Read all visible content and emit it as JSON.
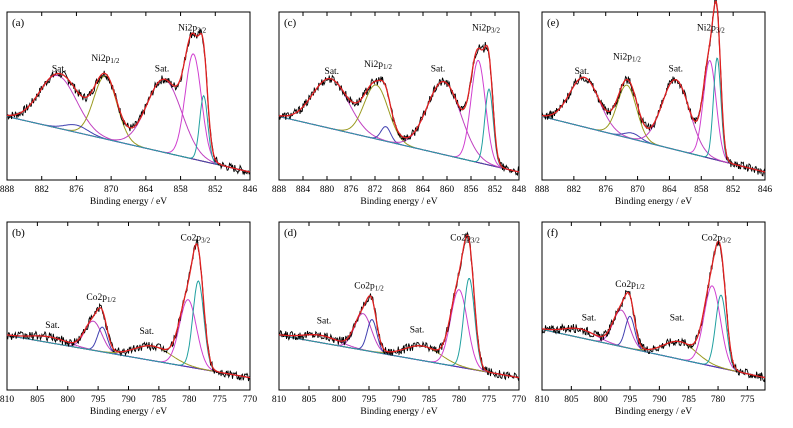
{
  "chart_data": [
    {
      "panel": "(a)",
      "type": "line",
      "xlabel": "Binding energy / eV",
      "xlim": [
        888,
        846
      ],
      "xticks": [
        888,
        882,
        876,
        870,
        864,
        858,
        852,
        846
      ],
      "ymin": 0,
      "ymax": 100,
      "annotations": [
        {
          "text": "Sat.",
          "x": 879.0,
          "y": 69
        },
        {
          "text": "Ni2p",
          "sub": "1/2",
          "x": 871.0,
          "y": 76
        },
        {
          "text": "Sat.",
          "x": 861.2,
          "y": 69
        },
        {
          "text": "Ni2p",
          "sub": "3/2",
          "x": 856.0,
          "y": 97
        }
      ],
      "background": [
        {
          "x": 888,
          "y": 38
        },
        {
          "x": 846,
          "y": 0
        }
      ],
      "series": [
        {
          "name": "Sat.",
          "color": "#c040c0",
          "peaks": [
            {
              "c": 879.2,
              "h": 36,
              "w": 3.2
            }
          ]
        },
        {
          "name": "Ni2p1/2",
          "color": "#9a9a20",
          "peaks": [
            {
              "c": 871.0,
              "h": 43,
              "w": 2.0
            }
          ]
        },
        {
          "name": "Ni2p1/2 minor",
          "color": "#4040b0",
          "peaks": [
            {
              "c": 876.0,
              "h": 5,
              "w": 2.0
            }
          ]
        },
        {
          "name": "Sat.",
          "color": "#c040c0",
          "peaks": [
            {
              "c": 860.8,
              "h": 50,
              "w": 3.0
            }
          ]
        },
        {
          "name": "Ni2p3/2",
          "color": "#d040d0",
          "peaks": [
            {
              "c": 855.8,
              "h": 72,
              "w": 1.4
            }
          ]
        },
        {
          "name": "Ni2p3/2 minor",
          "color": "#20a0a0",
          "peaks": [
            {
              "c": 854.0,
              "h": 45,
              "w": 0.7
            }
          ]
        }
      ]
    },
    {
      "panel": "(c)",
      "type": "line",
      "xlabel": "Binding energy / eV",
      "xlim": [
        888,
        848
      ],
      "xticks": [
        888,
        884,
        880,
        876,
        872,
        868,
        864,
        860,
        856,
        852,
        848
      ],
      "ymin": 0,
      "ymax": 100,
      "annotations": [
        {
          "text": "Sat.",
          "x": 879.2,
          "y": 67
        },
        {
          "text": "Ni2p",
          "sub": "1/2",
          "x": 871.5,
          "y": 72
        },
        {
          "text": "Sat.",
          "x": 861.5,
          "y": 69
        },
        {
          "text": "Ni2p",
          "sub": "3/2",
          "x": 853.5,
          "y": 97
        }
      ],
      "background": [
        {
          "x": 888,
          "y": 38
        },
        {
          "x": 848,
          "y": 0
        }
      ],
      "series": [
        {
          "name": "Sat.",
          "color": "#c040c0",
          "peaks": [
            {
              "c": 879.4,
              "h": 34,
              "w": 3.0
            }
          ]
        },
        {
          "name": "Ni2p1/2",
          "color": "#9a9a20",
          "peaks": [
            {
              "c": 871.8,
              "h": 37,
              "w": 2.0
            }
          ]
        },
        {
          "name": "Ni2p1/2 minor",
          "color": "#4040b0",
          "peaks": [
            {
              "c": 870.2,
              "h": 10,
              "w": 0.8
            }
          ]
        },
        {
          "name": "Sat.",
          "color": "#c040c0",
          "peaks": [
            {
              "c": 860.5,
              "h": 50,
              "w": 2.8
            }
          ]
        },
        {
          "name": "Ni2p3/2",
          "color": "#d040d0",
          "peaks": [
            {
              "c": 854.8,
              "h": 70,
              "w": 1.2
            }
          ]
        },
        {
          "name": "Ni2p3/2 minor",
          "color": "#20a0a0",
          "peaks": [
            {
              "c": 853.0,
              "h": 52,
              "w": 0.7
            }
          ]
        }
      ]
    },
    {
      "panel": "(e)",
      "type": "line",
      "xlabel": "Binding energy / eV",
      "xlim": [
        888,
        846
      ],
      "xticks": [
        888,
        882,
        876,
        870,
        864,
        858,
        852,
        846
      ],
      "ymin": 0,
      "ymax": 100,
      "annotations": [
        {
          "text": "Sat.",
          "x": 880.5,
          "y": 67
        },
        {
          "text": "Ni2p",
          "sub": "1/2",
          "x": 872.0,
          "y": 77
        },
        {
          "text": "Sat.",
          "x": 862.8,
          "y": 69
        },
        {
          "text": "Ni2p",
          "sub": "3/2",
          "x": 856.2,
          "y": 97
        }
      ],
      "background": [
        {
          "x": 888,
          "y": 38
        },
        {
          "x": 846,
          "y": 0
        }
      ],
      "series": [
        {
          "name": "Sat.",
          "color": "#c040c0",
          "peaks": [
            {
              "c": 880.0,
              "h": 34,
              "w": 2.8
            }
          ]
        },
        {
          "name": "Ni2p1/2",
          "color": "#9a9a20",
          "peaks": [
            {
              "c": 872.0,
              "h": 36,
              "w": 1.8
            }
          ]
        },
        {
          "name": "Ni2p1/2 minor",
          "color": "#4040b0",
          "peaks": [
            {
              "c": 871.0,
              "h": 4,
              "w": 1.5
            }
          ]
        },
        {
          "name": "Sat.",
          "color": "#c040c0",
          "peaks": [
            {
              "c": 862.8,
              "h": 48,
              "w": 2.6
            }
          ]
        },
        {
          "name": "Ni2p3/2",
          "color": "#d040d0",
          "peaks": [
            {
              "c": 856.4,
              "h": 67,
              "w": 1.2
            }
          ]
        },
        {
          "name": "Ni2p3/2 minor",
          "color": "#20a0a0",
          "peaks": [
            {
              "c": 855.0,
              "h": 70,
              "w": 0.7
            }
          ]
        }
      ]
    },
    {
      "panel": "(b)",
      "type": "line",
      "xlabel": "Binding energy / eV",
      "xlim": [
        810,
        770
      ],
      "xticks": [
        810,
        805,
        800,
        795,
        790,
        785,
        780,
        775,
        770
      ],
      "ymin": 0,
      "ymax": 100,
      "annotations": [
        {
          "text": "Sat.",
          "x": 802.5,
          "y": 37
        },
        {
          "text": "Co2p",
          "sub": "1/2",
          "x": 794.5,
          "y": 56
        },
        {
          "text": "Sat.",
          "x": 787.0,
          "y": 33
        },
        {
          "text": "Co2p",
          "sub": "3/2",
          "x": 779.0,
          "y": 97
        }
      ],
      "background": [
        {
          "x": 810,
          "y": 32
        },
        {
          "x": 770,
          "y": 3
        }
      ],
      "series": [
        {
          "name": "Sat.",
          "color": "#c040c0",
          "peaks": [
            {
              "c": 803.0,
              "h": 4,
              "w": 3.0
            }
          ]
        },
        {
          "name": "Co2p1/2",
          "color": "#c040c0",
          "peaks": [
            {
              "c": 795.8,
              "h": 20,
              "w": 1.4
            }
          ]
        },
        {
          "name": "Co2p1/2 minor",
          "color": "#4040b0",
          "peaks": [
            {
              "c": 794.3,
              "h": 17,
              "w": 0.8
            }
          ]
        },
        {
          "name": "Sat.",
          "color": "#9a9a20",
          "peaks": [
            {
              "c": 786.0,
              "h": 10,
              "w": 3.0
            }
          ]
        },
        {
          "name": "Co2p3/2",
          "color": "#d040d0",
          "peaks": [
            {
              "c": 780.2,
              "h": 46,
              "w": 1.4
            }
          ]
        },
        {
          "name": "Co2p3/2 minor",
          "color": "#20a0a0",
          "peaks": [
            {
              "c": 778.5,
              "h": 60,
              "w": 0.9
            }
          ]
        }
      ]
    },
    {
      "panel": "(d)",
      "type": "line",
      "xlabel": "Binding energy / eV",
      "xlim": [
        810,
        770
      ],
      "xticks": [
        810,
        805,
        800,
        795,
        790,
        785,
        780,
        775,
        770
      ],
      "ymin": 0,
      "ymax": 100,
      "annotations": [
        {
          "text": "Sat.",
          "x": 802.5,
          "y": 40
        },
        {
          "text": "Co2p",
          "sub": "1/2",
          "x": 795.0,
          "y": 64
        },
        {
          "text": "Sat.",
          "x": 787.0,
          "y": 34
        },
        {
          "text": "Co2p",
          "sub": "3/2",
          "x": 779.0,
          "y": 97
        }
      ],
      "background": [
        {
          "x": 810,
          "y": 32
        },
        {
          "x": 770,
          "y": 3
        }
      ],
      "series": [
        {
          "name": "Sat.",
          "color": "#c040c0",
          "peaks": [
            {
              "c": 803.0,
              "h": 5,
              "w": 3.0
            }
          ]
        },
        {
          "name": "Co2p1/2",
          "color": "#c040c0",
          "peaks": [
            {
              "c": 796.0,
              "h": 25,
              "w": 1.4
            }
          ]
        },
        {
          "name": "Co2p1/2 minor",
          "color": "#4040b0",
          "peaks": [
            {
              "c": 794.5,
              "h": 22,
              "w": 0.8
            }
          ]
        },
        {
          "name": "Sat.",
          "color": "#9a9a20",
          "peaks": [
            {
              "c": 786.0,
              "h": 10,
              "w": 3.0
            }
          ]
        },
        {
          "name": "Co2p3/2",
          "color": "#d040d0",
          "peaks": [
            {
              "c": 780.0,
              "h": 53,
              "w": 1.4
            }
          ]
        },
        {
          "name": "Co2p3/2 minor",
          "color": "#20a0a0",
          "peaks": [
            {
              "c": 778.3,
              "h": 62,
              "w": 0.9
            }
          ]
        }
      ]
    },
    {
      "panel": "(f)",
      "type": "line",
      "xlabel": "Binding energy / eV",
      "xlim": [
        810,
        772
      ],
      "xticks": [
        810,
        805,
        800,
        795,
        790,
        785,
        780,
        775
      ],
      "ymin": 0,
      "ymax": 100,
      "annotations": [
        {
          "text": "Sat.",
          "x": 802.0,
          "y": 42
        },
        {
          "text": "Co2p",
          "sub": "1/2",
          "x": 795.0,
          "y": 65
        },
        {
          "text": "Sat.",
          "x": 787.0,
          "y": 42
        },
        {
          "text": "Co2p",
          "sub": "3/2",
          "x": 780.3,
          "y": 97
        }
      ],
      "background": [
        {
          "x": 810,
          "y": 36
        },
        {
          "x": 772,
          "y": 3
        }
      ],
      "series": [
        {
          "name": "Sat.",
          "color": "#c040c0",
          "peaks": [
            {
              "c": 803.5,
              "h": 6,
              "w": 2.8
            }
          ]
        },
        {
          "name": "Co2p1/2",
          "color": "#c040c0",
          "peaks": [
            {
              "c": 796.5,
              "h": 25,
              "w": 1.4
            }
          ]
        },
        {
          "name": "Co2p1/2 minor",
          "color": "#4040b0",
          "peaks": [
            {
              "c": 795.0,
              "h": 22,
              "w": 0.8
            }
          ]
        },
        {
          "name": "Sat.",
          "color": "#9a9a20",
          "peaks": [
            {
              "c": 786.5,
              "h": 12,
              "w": 2.8
            }
          ]
        },
        {
          "name": "Co2p3/2",
          "color": "#d040d0",
          "peaks": [
            {
              "c": 781.0,
              "h": 55,
              "w": 1.4
            }
          ]
        },
        {
          "name": "Co2p3/2 minor",
          "color": "#20a0a0",
          "peaks": [
            {
              "c": 779.5,
              "h": 50,
              "w": 0.9
            }
          ]
        }
      ]
    }
  ],
  "colors": {
    "envelope": "#e02020",
    "data": "#000000",
    "background": "#d020d0"
  }
}
